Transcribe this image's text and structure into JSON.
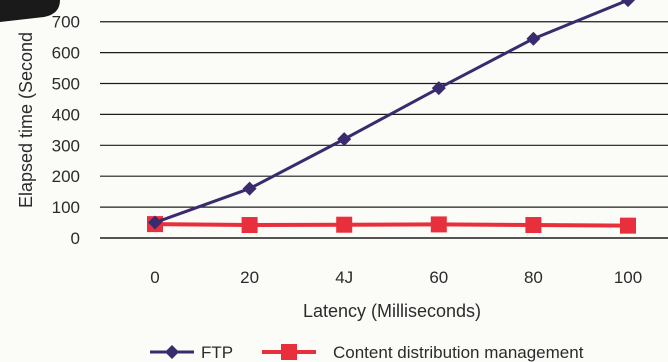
{
  "chart_data": {
    "type": "line",
    "title": "",
    "xlabel": "Latency (Milliseconds)",
    "ylabel": "Elapsed time (Second",
    "x": [
      0,
      20,
      40,
      60,
      80,
      100
    ],
    "x_tick_labels": [
      "0",
      "20",
      "4J",
      "60",
      "80",
      "100"
    ],
    "y_tick_labels": [
      "0",
      "100",
      "200",
      "300",
      "400",
      "500",
      "600",
      "700"
    ],
    "ylim": [
      0,
      780
    ],
    "grid": true,
    "legend_position": "bottom",
    "series": [
      {
        "name": "FTP",
        "values": [
          50,
          160,
          320,
          485,
          645,
          770
        ],
        "color": "#3a2a6e",
        "marker": "diamond"
      },
      {
        "name": "Content distribution management",
        "values": [
          45,
          42,
          43,
          44,
          42,
          40
        ],
        "color": "#e8303c",
        "marker": "square"
      }
    ]
  }
}
